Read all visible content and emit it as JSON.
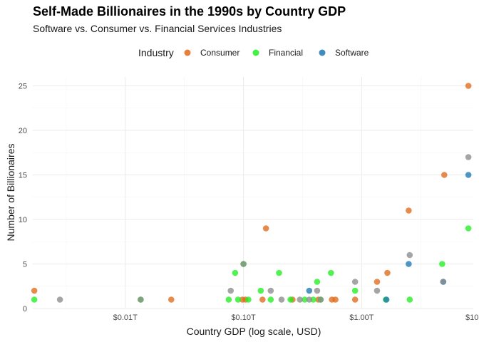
{
  "chart_data": {
    "type": "scatter",
    "title": "Self-Made Billionaires in the 1990s by Country GDP",
    "subtitle": "Software vs. Consumer vs. Financial Services Industries",
    "xlabel": "Country GDP (log scale, USD)",
    "ylabel": "Number of Billionaires",
    "x_scale": "log",
    "xlim": [
      0.00165,
      8.8
    ],
    "ylim": [
      0,
      26
    ],
    "x_ticks": [
      {
        "value": 0.01,
        "label": "$0.01T"
      },
      {
        "value": 0.1,
        "label": "$0.10T"
      },
      {
        "value": 1,
        "label": "$1.00T"
      },
      {
        "value": 10,
        "label": "$10.00T"
      }
    ],
    "y_ticks": [
      {
        "value": 0,
        "label": "0"
      },
      {
        "value": 5,
        "label": "5"
      },
      {
        "value": 10,
        "label": "10"
      },
      {
        "value": 15,
        "label": "15"
      },
      {
        "value": 20,
        "label": "20"
      },
      {
        "value": 25,
        "label": "25"
      }
    ],
    "grid": true,
    "legend": {
      "title": "Industry",
      "placement": "top"
    },
    "series": [
      {
        "name": "Consumer",
        "color": "#E06A1B",
        "points": [
          [
            0.0017,
            2
          ],
          [
            0.0245,
            1
          ],
          [
            0.098,
            1
          ],
          [
            0.104,
            1
          ],
          [
            0.145,
            1
          ],
          [
            0.155,
            9
          ],
          [
            0.26,
            1
          ],
          [
            0.43,
            1
          ],
          [
            0.56,
            1
          ],
          [
            0.6,
            1
          ],
          [
            0.88,
            1
          ],
          [
            1.35,
            3
          ],
          [
            1.65,
            4
          ],
          [
            2.5,
            11
          ],
          [
            5.0,
            15
          ],
          [
            8.0,
            25
          ]
        ]
      },
      {
        "name": "Financial",
        "color": "#22EE22",
        "points": [
          [
            0.0017,
            1
          ],
          [
            0.0135,
            1
          ],
          [
            0.075,
            1
          ],
          [
            0.085,
            4
          ],
          [
            0.09,
            1
          ],
          [
            0.1,
            5
          ],
          [
            0.11,
            1
          ],
          [
            0.14,
            2
          ],
          [
            0.17,
            1
          ],
          [
            0.2,
            4
          ],
          [
            0.25,
            1
          ],
          [
            0.33,
            1
          ],
          [
            0.39,
            1
          ],
          [
            0.42,
            3
          ],
          [
            0.45,
            1
          ],
          [
            0.55,
            4
          ],
          [
            0.88,
            2
          ],
          [
            1.6,
            1
          ],
          [
            2.55,
            1
          ],
          [
            4.8,
            5
          ],
          [
            8.0,
            9
          ]
        ]
      },
      {
        "name": "Software",
        "color": "#1F78B4",
        "points": [
          [
            0.36,
            2
          ],
          [
            1.62,
            1
          ],
          [
            2.5,
            5
          ],
          [
            4.9,
            3
          ],
          [
            8.0,
            15
          ]
        ]
      },
      {
        "name": "",
        "color": "#8C8C8C",
        "points": [
          [
            0.0028,
            1
          ],
          [
            0.0135,
            1
          ],
          [
            0.078,
            2
          ],
          [
            0.1,
            5
          ],
          [
            0.17,
            2
          ],
          [
            0.21,
            1
          ],
          [
            0.3,
            1
          ],
          [
            0.36,
            1
          ],
          [
            0.42,
            2
          ],
          [
            0.45,
            1
          ],
          [
            0.88,
            3
          ],
          [
            1.35,
            2
          ],
          [
            2.55,
            6
          ],
          [
            4.9,
            3
          ],
          [
            8.0,
            17
          ]
        ]
      }
    ]
  }
}
